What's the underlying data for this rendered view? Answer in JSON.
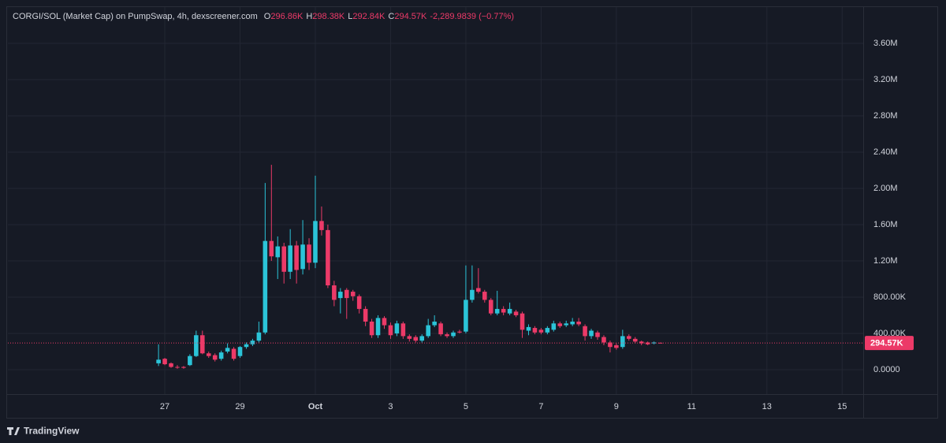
{
  "chart_data": {
    "type": "candlestick",
    "title": "CORGI/SOL (Market Cap) on PumpSwap, 4h, dexscreener.com",
    "readout": [
      {
        "label": "O",
        "value": "296.86K"
      },
      {
        "label": "H",
        "value": "298.38K"
      },
      {
        "label": "L",
        "value": "292.84K"
      },
      {
        "label": "C",
        "value": "294.57K"
      }
    ],
    "change": "-2,289.9839 (−0.77%)",
    "brand": "TradingView",
    "up_color": "#2bc4d8",
    "down_color": "#ec3a68",
    "grid": true,
    "xlim": [
      22.83,
      45.56
    ],
    "xticks": [
      27,
      29,
      {
        "value": 31,
        "label": "Oct"
      },
      {
        "value": 33,
        "label": "3"
      },
      {
        "value": 35,
        "label": "5"
      },
      {
        "value": 37,
        "label": "7"
      },
      {
        "value": 39,
        "label": "9"
      },
      {
        "value": 41,
        "label": "11"
      },
      {
        "value": 43,
        "label": "13"
      },
      {
        "value": 45,
        "label": "15"
      }
    ],
    "ylim": [
      -270000,
      3800000
    ],
    "yticks": [
      {
        "value": 0,
        "label": "0.0000"
      },
      {
        "value": 400000,
        "label": "400.00K"
      },
      {
        "value": 800000,
        "label": "800.00K"
      },
      {
        "value": 1200000,
        "label": "1.20M"
      },
      {
        "value": 1600000,
        "label": "1.60M"
      },
      {
        "value": 2000000,
        "label": "2.00M"
      },
      {
        "value": 2400000,
        "label": "2.40M"
      },
      {
        "value": 2800000,
        "label": "2.80M"
      },
      {
        "value": 3200000,
        "label": "3.20M"
      },
      {
        "value": 3600000,
        "label": "3.60M"
      }
    ],
    "last_price": {
      "value": 294570,
      "label": "294.57K"
    },
    "x": [
      26.8333,
      27,
      27.1667,
      27.3333,
      27.5,
      27.6667,
      27.8333,
      28,
      28.1667,
      28.3333,
      28.5,
      28.6667,
      28.8333,
      29,
      29.1667,
      29.3333,
      29.5,
      29.6667,
      29.8333,
      30,
      30.1667,
      30.3333,
      30.5,
      30.6667,
      30.8333,
      31,
      31.1667,
      31.3333,
      31.5,
      31.6667,
      31.8333,
      32,
      32.1667,
      32.3333,
      32.5,
      32.6667,
      32.8333,
      33,
      33.1667,
      33.3333,
      33.5,
      33.6667,
      33.8333,
      34,
      34.1667,
      34.3333,
      34.5,
      34.6667,
      34.8333,
      35,
      35.1667,
      35.3333,
      35.5,
      35.6667,
      35.8333,
      36,
      36.1667,
      36.3333,
      36.5,
      36.6667,
      36.8333,
      37,
      37.1667,
      37.3333,
      37.5,
      37.6667,
      37.8333,
      38,
      38.1667,
      38.3333,
      38.5,
      38.6667,
      38.8333,
      39,
      39.1667,
      39.3333,
      39.5,
      39.6667,
      39.8333,
      40,
      40.1667
    ],
    "open": [
      70000,
      120000,
      70000,
      30000,
      30000,
      50000,
      150000,
      380000,
      180000,
      160000,
      120000,
      200000,
      230000,
      150000,
      250000,
      280000,
      320000,
      410000,
      1420000,
      1240000,
      1360000,
      1080000,
      1370000,
      1110000,
      1380000,
      1180000,
      1640000,
      1540000,
      930000,
      790000,
      880000,
      860000,
      810000,
      670000,
      530000,
      380000,
      570000,
      490000,
      400000,
      510000,
      370000,
      360000,
      320000,
      370000,
      490000,
      510000,
      390000,
      370000,
      420000,
      420000,
      770000,
      900000,
      860000,
      770000,
      620000,
      670000,
      620000,
      640000,
      620000,
      430000,
      460000,
      440000,
      410000,
      440000,
      510000,
      490000,
      500000,
      530000,
      480000,
      370000,
      410000,
      360000,
      300000,
      270000,
      250000,
      370000,
      340000,
      310000,
      300000,
      290000,
      296860
    ],
    "high": [
      280000,
      130000,
      80000,
      50000,
      40000,
      170000,
      430000,
      430000,
      200000,
      180000,
      210000,
      290000,
      250000,
      260000,
      300000,
      340000,
      530000,
      2060000,
      2260000,
      1470000,
      1400000,
      1550000,
      1420000,
      1650000,
      1450000,
      2140000,
      1800000,
      1600000,
      980000,
      900000,
      900000,
      880000,
      830000,
      700000,
      560000,
      600000,
      590000,
      520000,
      540000,
      530000,
      390000,
      380000,
      390000,
      560000,
      600000,
      530000,
      410000,
      430000,
      440000,
      1150000,
      1150000,
      1120000,
      880000,
      790000,
      870000,
      700000,
      740000,
      660000,
      640000,
      500000,
      480000,
      460000,
      480000,
      540000,
      530000,
      540000,
      570000,
      570000,
      500000,
      450000,
      430000,
      380000,
      320000,
      290000,
      440000,
      390000,
      360000,
      320000,
      310000,
      310000,
      298380
    ],
    "low": [
      40000,
      50000,
      20000,
      10000,
      10000,
      40000,
      140000,
      170000,
      130000,
      90000,
      100000,
      180000,
      100000,
      130000,
      230000,
      260000,
      300000,
      390000,
      1200000,
      1000000,
      950000,
      1000000,
      950000,
      1050000,
      1100000,
      1120000,
      1480000,
      900000,
      700000,
      620000,
      560000,
      760000,
      620000,
      480000,
      350000,
      350000,
      450000,
      340000,
      370000,
      340000,
      310000,
      300000,
      300000,
      350000,
      470000,
      370000,
      350000,
      350000,
      400000,
      400000,
      740000,
      840000,
      740000,
      600000,
      600000,
      600000,
      600000,
      580000,
      350000,
      380000,
      390000,
      390000,
      390000,
      420000,
      460000,
      470000,
      480000,
      480000,
      320000,
      340000,
      330000,
      270000,
      190000,
      220000,
      230000,
      320000,
      290000,
      270000,
      270000,
      280000,
      292840
    ],
    "close": [
      110000,
      60000,
      30000,
      25000,
      20000,
      150000,
      380000,
      180000,
      150000,
      110000,
      190000,
      240000,
      120000,
      250000,
      280000,
      320000,
      410000,
      1420000,
      1250000,
      1360000,
      1080000,
      1370000,
      1100000,
      1380000,
      1180000,
      1640000,
      1540000,
      930000,
      770000,
      860000,
      790000,
      810000,
      670000,
      530000,
      380000,
      570000,
      490000,
      380000,
      510000,
      370000,
      340000,
      320000,
      370000,
      490000,
      530000,
      390000,
      370000,
      410000,
      410000,
      770000,
      880000,
      860000,
      770000,
      620000,
      670000,
      630000,
      670000,
      600000,
      440000,
      470000,
      410000,
      410000,
      460000,
      510000,
      480000,
      510000,
      530000,
      500000,
      370000,
      430000,
      360000,
      300000,
      250000,
      240000,
      370000,
      340000,
      310000,
      290000,
      280000,
      300000,
      294570
    ]
  }
}
